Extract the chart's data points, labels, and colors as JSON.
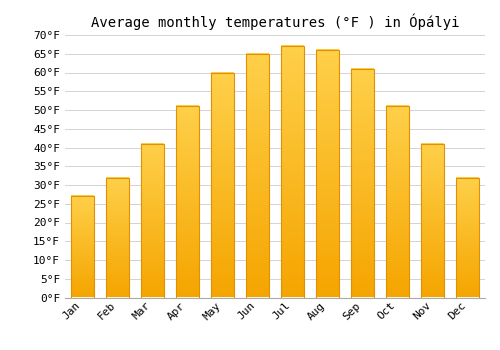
{
  "title": "Average monthly temperatures (°F ) in Ópályi",
  "months": [
    "Jan",
    "Feb",
    "Mar",
    "Apr",
    "May",
    "Jun",
    "Jul",
    "Aug",
    "Sep",
    "Oct",
    "Nov",
    "Dec"
  ],
  "values": [
    27,
    32,
    41,
    51,
    60,
    65,
    67,
    66,
    61,
    51,
    41,
    32
  ],
  "bar_color_top": "#FFD04A",
  "bar_color_bottom": "#F5A500",
  "bar_edge_color": "#E09000",
  "background_color": "#ffffff",
  "grid_color": "#cccccc",
  "ylim": [
    0,
    70
  ],
  "yticks": [
    0,
    5,
    10,
    15,
    20,
    25,
    30,
    35,
    40,
    45,
    50,
    55,
    60,
    65,
    70
  ],
  "title_fontsize": 10,
  "tick_fontsize": 8,
  "font_family": "monospace"
}
